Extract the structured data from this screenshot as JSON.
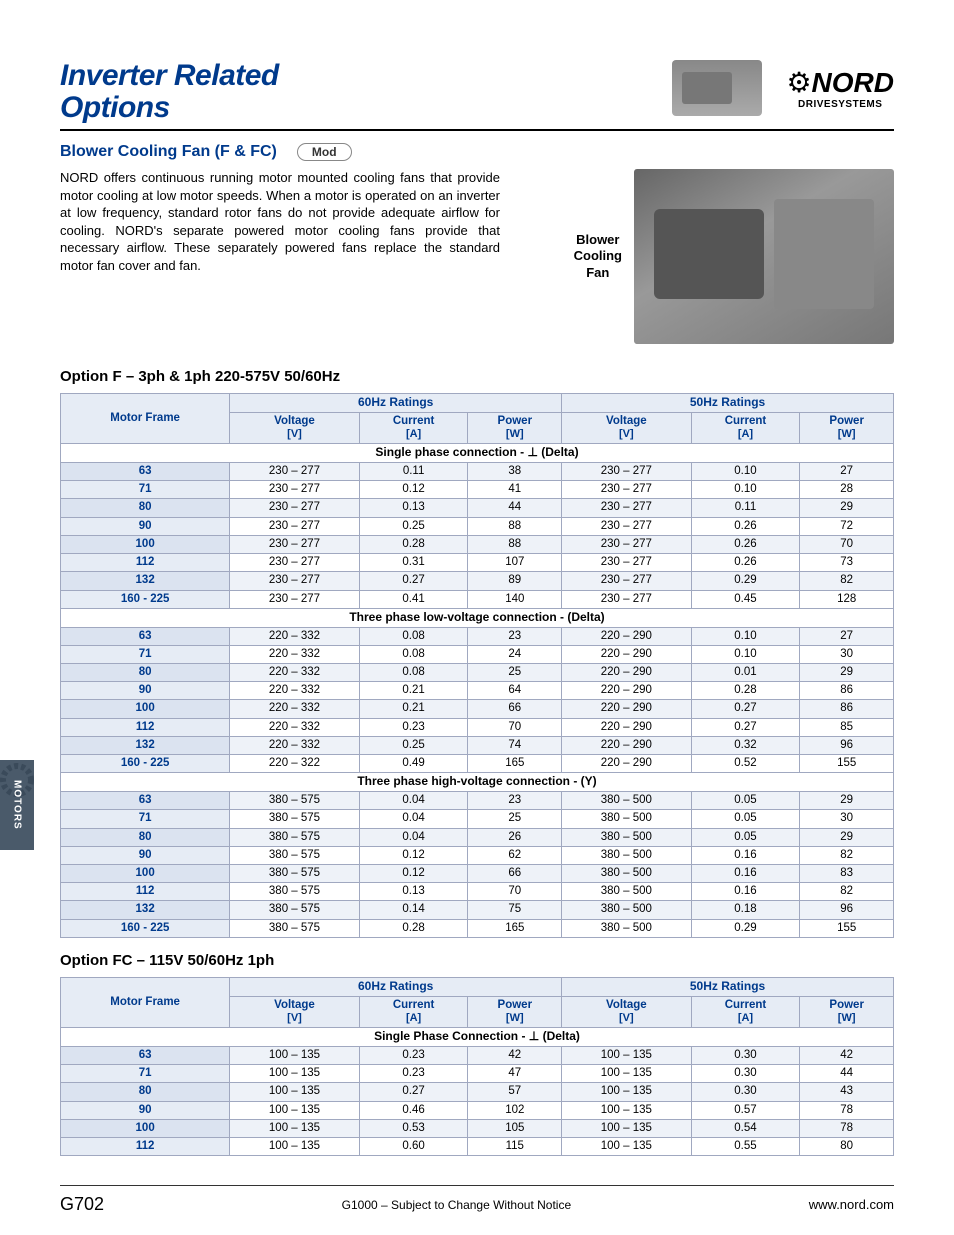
{
  "sideTab": "MOTORS",
  "title": {
    "line1": "Inverter Related",
    "line2": "Options"
  },
  "nordLogo": {
    "brand": "NORD",
    "sub": "DRIVESYSTEMS"
  },
  "section": {
    "heading": "Blower Cooling Fan (F & FC)",
    "badge": "Mod",
    "paragraph": "NORD offers continuous running motor mounted cooling fans that provide motor cooling at low motor speeds.  When a motor is operated on an inverter at low frequency, standard rotor fans do not provide adequate airflow for cooling.  NORD's separate powered motor cooling fans provide that necessary airflow.  These separately powered fans replace the standard motor fan cover and fan.",
    "imageLabel": "Blower\nCooling\nFan"
  },
  "tableF": {
    "title": "Option F – 3ph & 1ph 220-575V 50/60Hz",
    "headers": {
      "motorFrame": "Motor Frame",
      "grp60": "60Hz Ratings",
      "grp50": "50Hz Ratings",
      "voltage": "Voltage",
      "voltageU": "[V]",
      "current": "Current",
      "currentU": "[A]",
      "power": "Power",
      "powerU": "[W]"
    },
    "sections": [
      {
        "label": "Single phase connection - ⊥ (Delta)",
        "rows": [
          [
            "63",
            "230 – 277",
            "0.11",
            "38",
            "230 – 277",
            "0.10",
            "27"
          ],
          [
            "71",
            "230 – 277",
            "0.12",
            "41",
            "230 – 277",
            "0.10",
            "28"
          ],
          [
            "80",
            "230 – 277",
            "0.13",
            "44",
            "230 – 277",
            "0.11",
            "29"
          ],
          [
            "90",
            "230 – 277",
            "0.25",
            "88",
            "230 – 277",
            "0.26",
            "72"
          ],
          [
            "100",
            "230 – 277",
            "0.28",
            "88",
            "230 – 277",
            "0.26",
            "70"
          ],
          [
            "112",
            "230 – 277",
            "0.31",
            "107",
            "230 – 277",
            "0.26",
            "73"
          ],
          [
            "132",
            "230 – 277",
            "0.27",
            "89",
            "230 – 277",
            "0.29",
            "82"
          ],
          [
            "160 - 225",
            "230 – 277",
            "0.41",
            "140",
            "230 – 277",
            "0.45",
            "128"
          ]
        ]
      },
      {
        "label": "Three phase low-voltage connection - (Delta)",
        "rows": [
          [
            "63",
            "220 – 332",
            "0.08",
            "23",
            "220 – 290",
            "0.10",
            "27"
          ],
          [
            "71",
            "220 – 332",
            "0.08",
            "24",
            "220 – 290",
            "0.10",
            "30"
          ],
          [
            "80",
            "220 – 332",
            "0.08",
            "25",
            "220 – 290",
            "0.01",
            "29"
          ],
          [
            "90",
            "220 – 332",
            "0.21",
            "64",
            "220 – 290",
            "0.28",
            "86"
          ],
          [
            "100",
            "220 – 332",
            "0.21",
            "66",
            "220 – 290",
            "0.27",
            "86"
          ],
          [
            "112",
            "220 – 332",
            "0.23",
            "70",
            "220 – 290",
            "0.27",
            "85"
          ],
          [
            "132",
            "220 – 332",
            "0.25",
            "74",
            "220 – 290",
            "0.32",
            "96"
          ],
          [
            "160 - 225",
            "220 – 322",
            "0.49",
            "165",
            "220 – 290",
            "0.52",
            "155"
          ]
        ]
      },
      {
        "label": "Three phase high-voltage connection - (Y)",
        "rows": [
          [
            "63",
            "380 – 575",
            "0.04",
            "23",
            "380 – 500",
            "0.05",
            "29"
          ],
          [
            "71",
            "380 – 575",
            "0.04",
            "25",
            "380 – 500",
            "0.05",
            "30"
          ],
          [
            "80",
            "380 – 575",
            "0.04",
            "26",
            "380 – 500",
            "0.05",
            "29"
          ],
          [
            "90",
            "380 – 575",
            "0.12",
            "62",
            "380 – 500",
            "0.16",
            "82"
          ],
          [
            "100",
            "380 – 575",
            "0.12",
            "66",
            "380 – 500",
            "0.16",
            "83"
          ],
          [
            "112",
            "380 – 575",
            "0.13",
            "70",
            "380 – 500",
            "0.16",
            "82"
          ],
          [
            "132",
            "380 – 575",
            "0.14",
            "75",
            "380 – 500",
            "0.18",
            "96"
          ],
          [
            "160 - 225",
            "380 – 575",
            "0.28",
            "165",
            "380 – 500",
            "0.29",
            "155"
          ]
        ]
      }
    ]
  },
  "tableFC": {
    "title": "Option FC – 115V 50/60Hz 1ph",
    "sections": [
      {
        "label": "Single Phase Connection - ⊥ (Delta)",
        "rows": [
          [
            "63",
            "100 – 135",
            "0.23",
            "42",
            "100 – 135",
            "0.30",
            "42"
          ],
          [
            "71",
            "100 – 135",
            "0.23",
            "47",
            "100 – 135",
            "0.30",
            "44"
          ],
          [
            "80",
            "100 – 135",
            "0.27",
            "57",
            "100 – 135",
            "0.30",
            "43"
          ],
          [
            "90",
            "100 – 135",
            "0.46",
            "102",
            "100 – 135",
            "0.57",
            "78"
          ],
          [
            "100",
            "100 – 135",
            "0.53",
            "105",
            "100 – 135",
            "0.54",
            "78"
          ],
          [
            "112",
            "100 – 135",
            "0.60",
            "115",
            "100 – 135",
            "0.55",
            "80"
          ]
        ]
      }
    ]
  },
  "footer": {
    "page": "G702",
    "mid": "G1000 – Subject to Change Without Notice",
    "url": "www.nord.com"
  },
  "colors": {
    "brandBlue": "#003a8c",
    "headerBg": "#e6ecf5",
    "shadeBg": "#eef2f8",
    "border": "#a0a8c0"
  }
}
